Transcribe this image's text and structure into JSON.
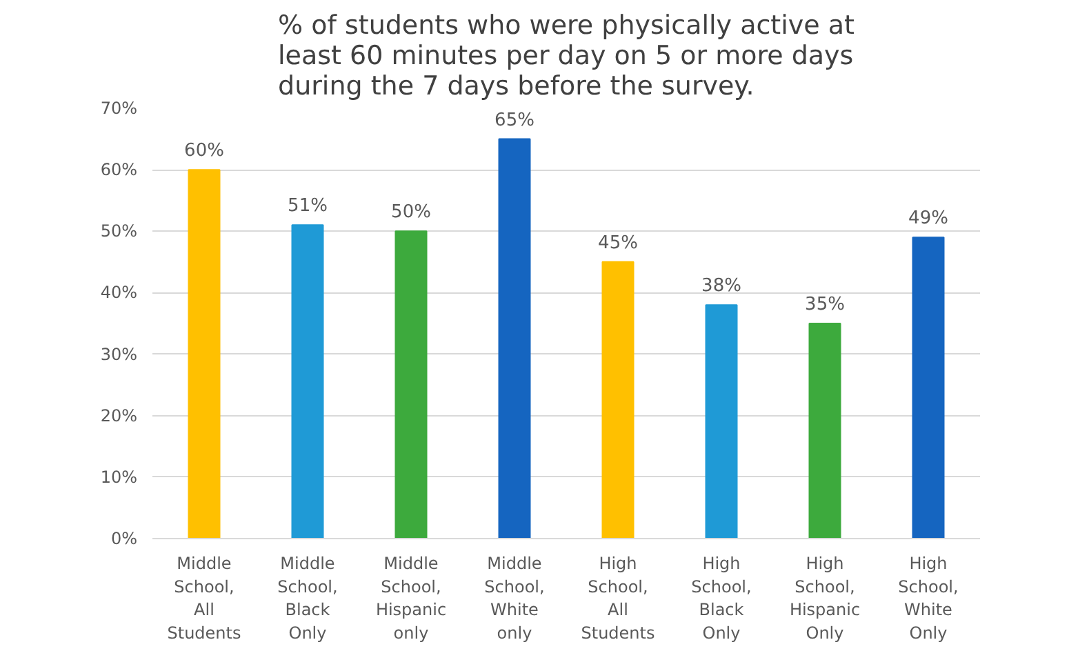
{
  "chart_data": {
    "type": "bar",
    "title": "% of students who were physically active at least 60 minutes per day on 5 or more days during the 7 days before the survey.",
    "categories": [
      "Middle School, All Students",
      "Middle School, Black Only",
      "Middle School, Hispanic only",
      "Middle School, White only",
      "High School, All Students",
      "High School, Black Only",
      "High School, Hispanic Only",
      "High School, White Only"
    ],
    "values": [
      60,
      51,
      50,
      65,
      45,
      38,
      35,
      49
    ],
    "colors": [
      "#ffc000",
      "#1f9ad6",
      "#3daa3d",
      "#1565c0",
      "#ffc000",
      "#1f9ad6",
      "#3daa3d",
      "#1565c0"
    ],
    "value_labels": [
      "60%",
      "51%",
      "50%",
      "65%",
      "45%",
      "38%",
      "35%",
      "49%"
    ],
    "ylim": [
      0,
      70
    ],
    "yticks": [
      {
        "value": 0,
        "label": "0%"
      },
      {
        "value": 10,
        "label": "10%"
      },
      {
        "value": 20,
        "label": "20%"
      },
      {
        "value": 30,
        "label": "30%"
      },
      {
        "value": 40,
        "label": "40%"
      },
      {
        "value": 50,
        "label": "50%"
      },
      {
        "value": 60,
        "label": "60%"
      },
      {
        "value": 70,
        "label": "70%"
      }
    ],
    "grid": "y"
  }
}
